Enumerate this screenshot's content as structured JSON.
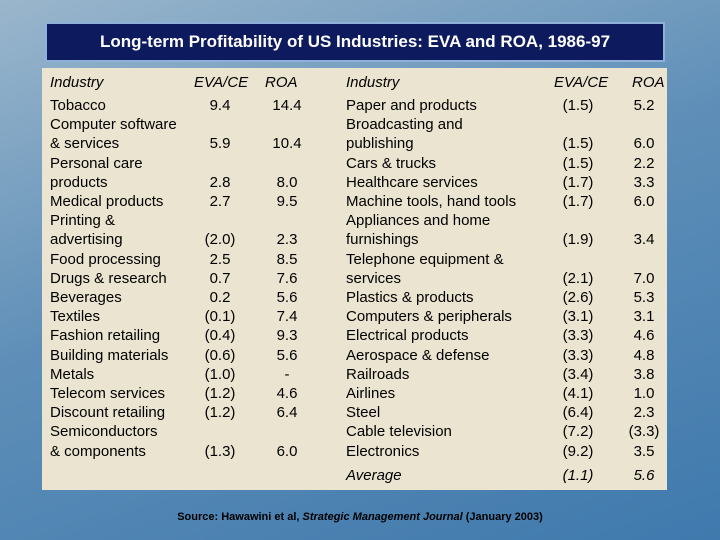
{
  "title": "Long-term Profitability of US Industries: EVA and ROA, 1986-97",
  "left_table": {
    "header": [
      "Industry",
      "EVA/CE",
      "ROA"
    ],
    "rows": [
      [
        [
          "Tobacco"
        ],
        "9.4",
        "14.4"
      ],
      [
        [
          "Computer software",
          "& services"
        ],
        "5.9",
        "10.4"
      ],
      [
        [
          "Personal care",
          "products"
        ],
        "2.8",
        "8.0"
      ],
      [
        [
          "Medical products"
        ],
        "2.7",
        "9.5"
      ],
      [
        [
          "Printing &",
          "advertising"
        ],
        "(2.0)",
        "2.3"
      ],
      [
        [
          "Food processing"
        ],
        "2.5",
        "8.5"
      ],
      [
        [
          "Drugs & research"
        ],
        "0.7",
        "7.6"
      ],
      [
        [
          "Beverages"
        ],
        "0.2",
        "5.6"
      ],
      [
        [
          "Textiles"
        ],
        "(0.1)",
        "7.4"
      ],
      [
        [
          "Fashion retailing"
        ],
        "(0.4)",
        "9.3"
      ],
      [
        [
          "Building materials"
        ],
        "(0.6)",
        "5.6"
      ],
      [
        [
          "Metals"
        ],
        "(1.0)",
        "-"
      ],
      [
        [
          "Telecom services"
        ],
        "(1.2)",
        "4.6"
      ],
      [
        [
          "Discount retailing"
        ],
        "(1.2)",
        "6.4"
      ],
      [
        [
          "Semiconductors",
          "& components"
        ],
        "(1.3)",
        "6.0"
      ]
    ]
  },
  "right_table": {
    "header": [
      "Industry",
      "EVA/CE",
      "ROA"
    ],
    "rows": [
      [
        [
          "Paper and products"
        ],
        "(1.5)",
        "5.2"
      ],
      [
        [
          "Broadcasting and",
          "publishing"
        ],
        "(1.5)",
        "6.0"
      ],
      [
        [
          "Cars & trucks"
        ],
        "(1.5)",
        "2.2"
      ],
      [
        [
          "Healthcare services"
        ],
        "(1.7)",
        "3.3"
      ],
      [
        [
          "Machine tools, hand tools"
        ],
        "(1.7)",
        "6.0"
      ],
      [
        [
          "Appliances and home",
          "furnishings"
        ],
        "(1.9)",
        "3.4"
      ],
      [
        [
          "Telephone equipment &",
          "services"
        ],
        "(2.1)",
        "7.0"
      ],
      [
        [
          "Plastics & products"
        ],
        "(2.6)",
        "5.3"
      ],
      [
        [
          "Computers & peripherals"
        ],
        "(3.1)",
        "3.1"
      ],
      [
        [
          "Electrical products"
        ],
        "(3.3)",
        "4.6"
      ],
      [
        [
          "Aerospace & defense"
        ],
        "(3.3)",
        "4.8"
      ],
      [
        [
          "Railroads"
        ],
        "(3.4)",
        "3.8"
      ],
      [
        [
          "Airlines"
        ],
        "(4.1)",
        "1.0"
      ],
      [
        [
          "Steel"
        ],
        "(6.4)",
        "2.3"
      ],
      [
        [
          "Cable television"
        ],
        "(7.2)",
        "(3.3)"
      ],
      [
        [
          "Electronics"
        ],
        "(9.2)",
        "3.5"
      ]
    ],
    "average": [
      "Average",
      "(1.1)",
      "5.6"
    ]
  },
  "source": {
    "prefix": "Source: Hawawini et al, ",
    "journal": "Strategic Management Journal",
    "suffix": " (January 2003)"
  }
}
